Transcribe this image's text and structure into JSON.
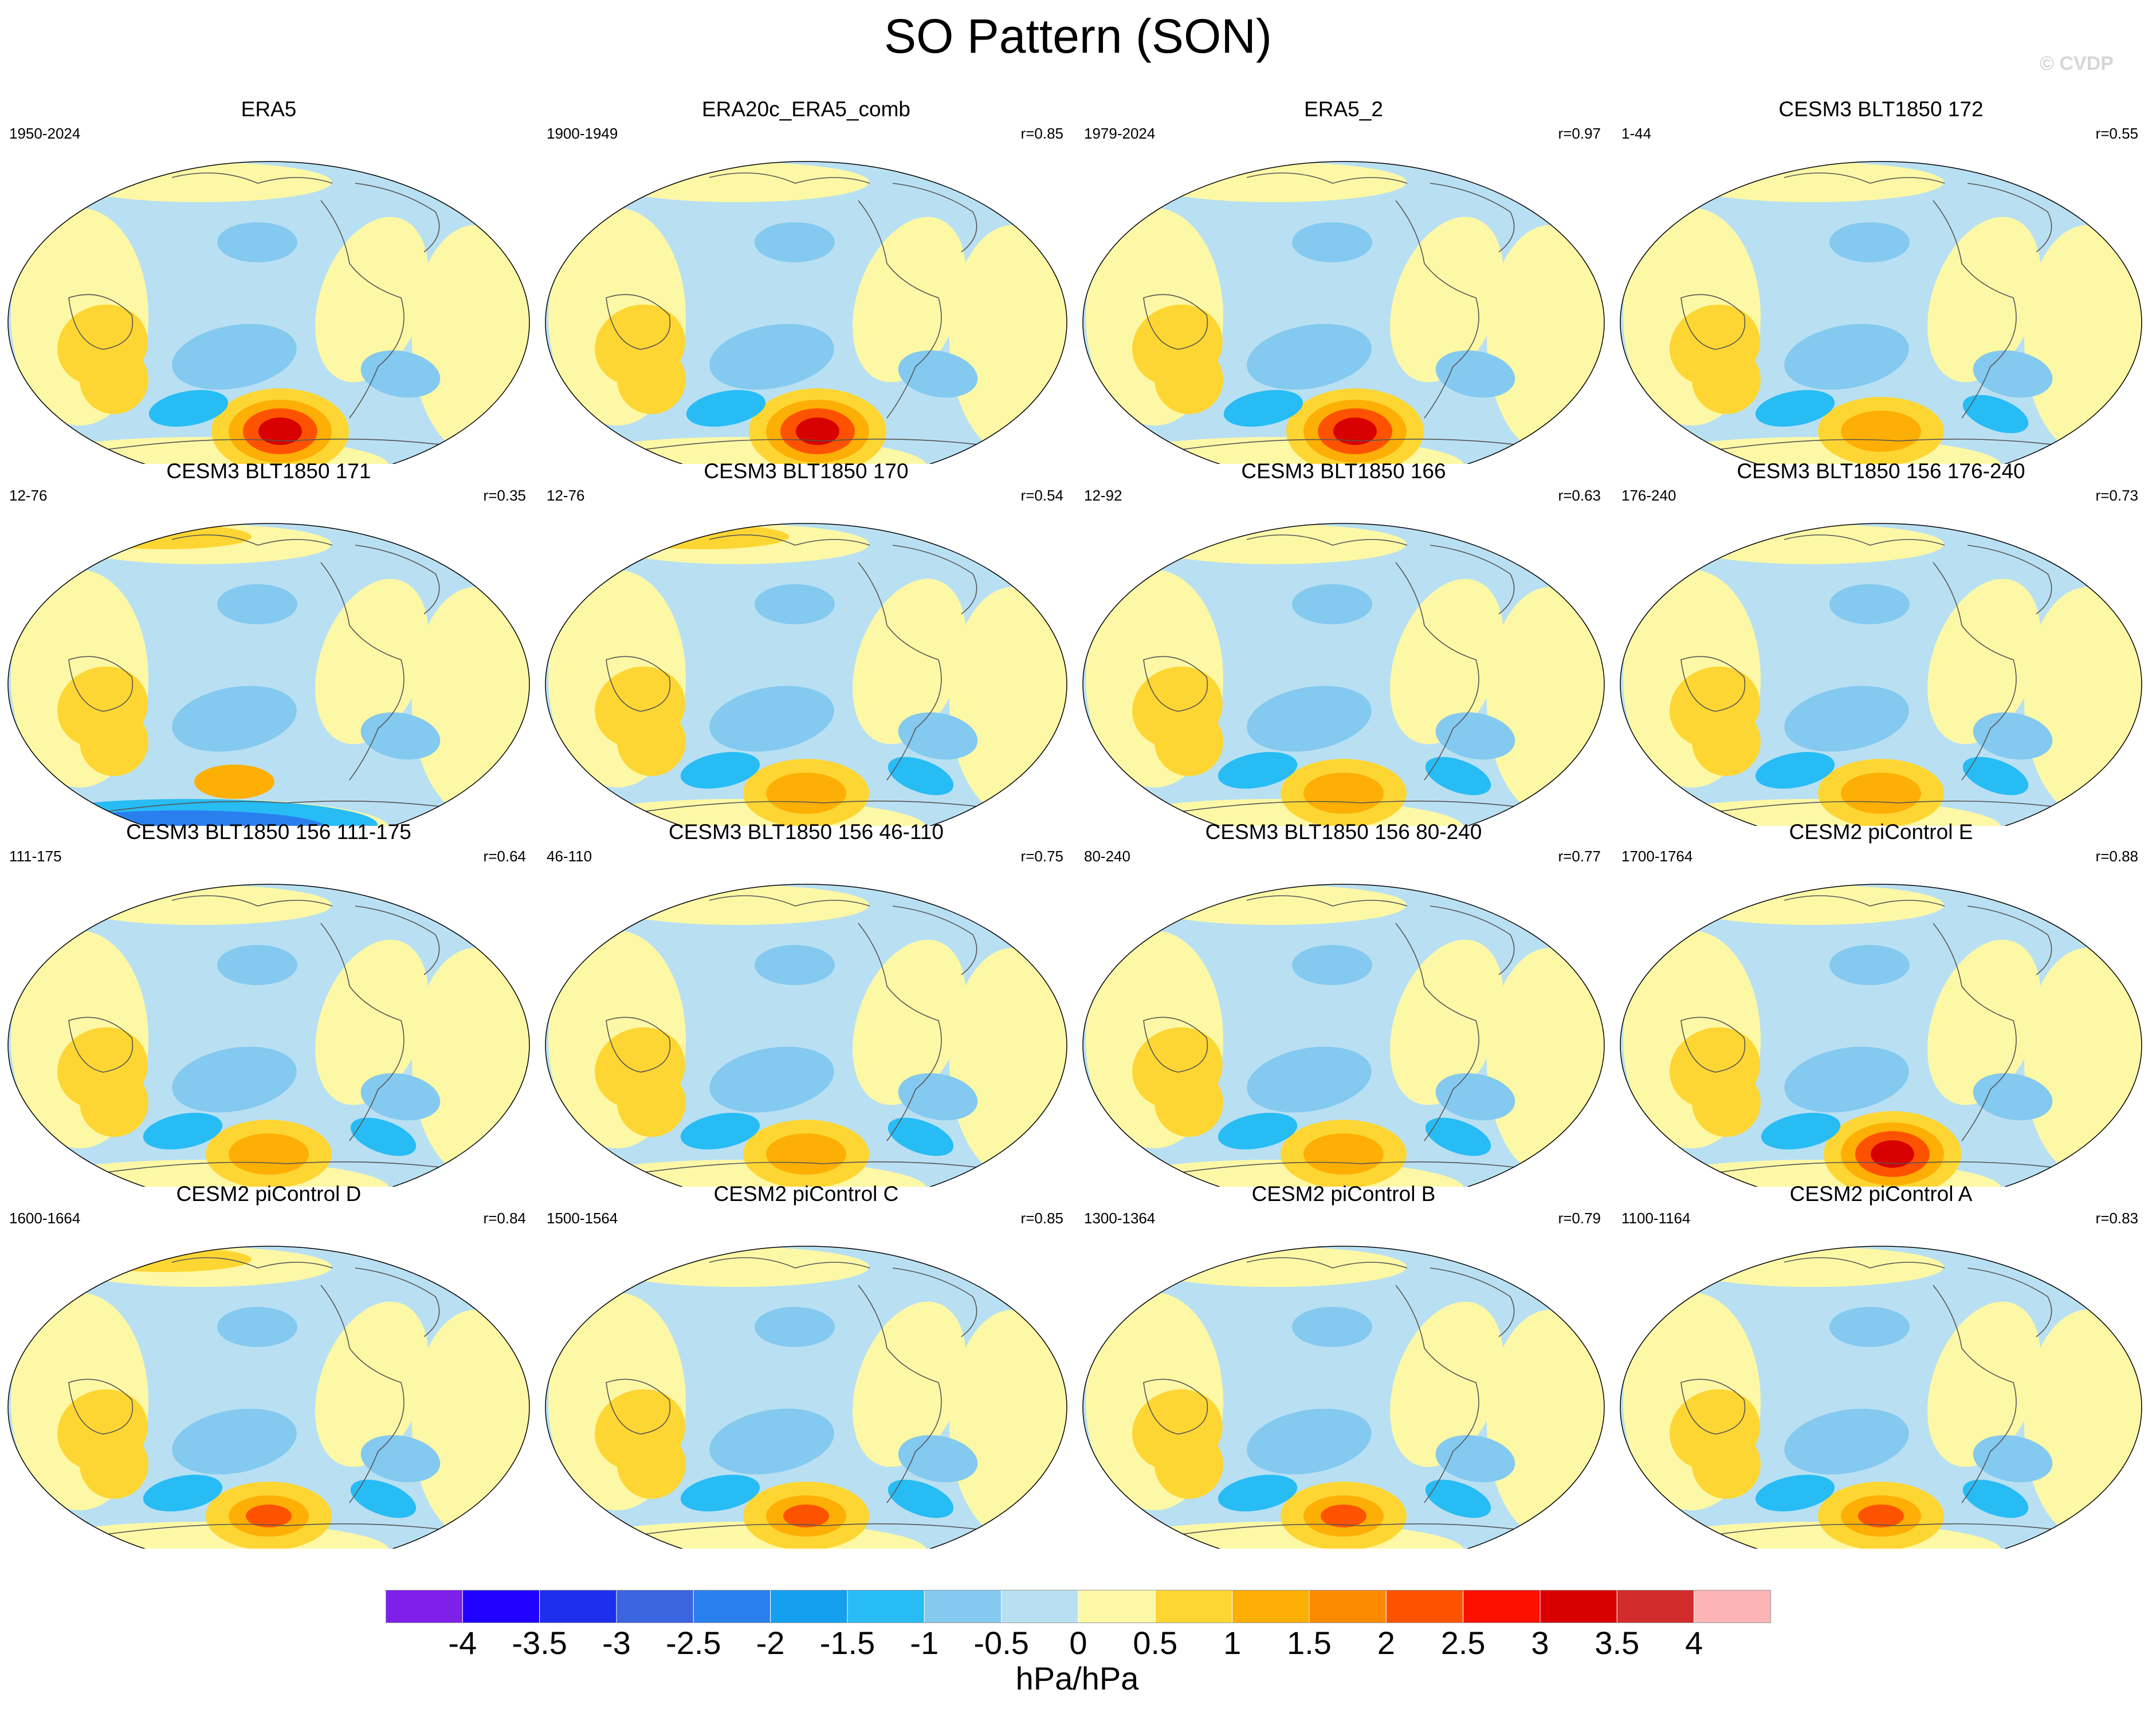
{
  "title": "SO Pattern (SON)",
  "credit": "© CVDP",
  "panels": [
    {
      "name": "ERA5",
      "years": "1950-2024",
      "corr": ""
    },
    {
      "name": "ERA20c_ERA5_comb",
      "years": "1900-1949",
      "corr": "r=0.85"
    },
    {
      "name": "ERA5_2",
      "years": "1979-2024",
      "corr": "r=0.97"
    },
    {
      "name": "CESM3 BLT1850 172",
      "years": "1-44",
      "corr": "r=0.55"
    },
    {
      "name": "CESM3 BLT1850 171",
      "years": "12-76",
      "corr": "r=0.35"
    },
    {
      "name": "CESM3 BLT1850 170",
      "years": "12-76",
      "corr": "r=0.54"
    },
    {
      "name": "CESM3 BLT1850 166",
      "years": "12-92",
      "corr": "r=0.63"
    },
    {
      "name": "CESM3 BLT1850 156 176-240",
      "years": "176-240",
      "corr": "r=0.73"
    },
    {
      "name": "CESM3 BLT1850 156 111-175",
      "years": "111-175",
      "corr": "r=0.64"
    },
    {
      "name": "CESM3 BLT1850 156 46-110",
      "years": "46-110",
      "corr": "r=0.75"
    },
    {
      "name": "CESM3 BLT1850 156 80-240",
      "years": "80-240",
      "corr": "r=0.77"
    },
    {
      "name": "CESM2 piControl E",
      "years": "1700-1764",
      "corr": "r=0.88"
    },
    {
      "name": "CESM2 piControl D",
      "years": "1600-1664",
      "corr": "r=0.84"
    },
    {
      "name": "CESM2 piControl C",
      "years": "1500-1564",
      "corr": "r=0.85"
    },
    {
      "name": "CESM2 piControl B",
      "years": "1300-1364",
      "corr": "r=0.79"
    },
    {
      "name": "CESM2 piControl A",
      "years": "1100-1164",
      "corr": "r=0.83"
    }
  ],
  "colorbar": {
    "unit": "hPa/hPa",
    "ticks": [
      "-4",
      "-3.5",
      "-3",
      "-2.5",
      "-2",
      "-1.5",
      "-1",
      "-0.5",
      "0",
      "0.5",
      "1",
      "1.5",
      "2",
      "2.5",
      "3",
      "3.5",
      "4"
    ],
    "colors": [
      "#7f1fea",
      "#2000ff",
      "#1c2fed",
      "#3a64e0",
      "#2a7fef",
      "#15a0ef",
      "#28bcf5",
      "#84c9ef",
      "#b9e0f2",
      "#fdf8a6",
      "#fdd633",
      "#fdaf05",
      "#fd8a00",
      "#fd5300",
      "#fd0f00",
      "#d80000",
      "#d22c2c",
      "#fdb4b4"
    ]
  }
}
